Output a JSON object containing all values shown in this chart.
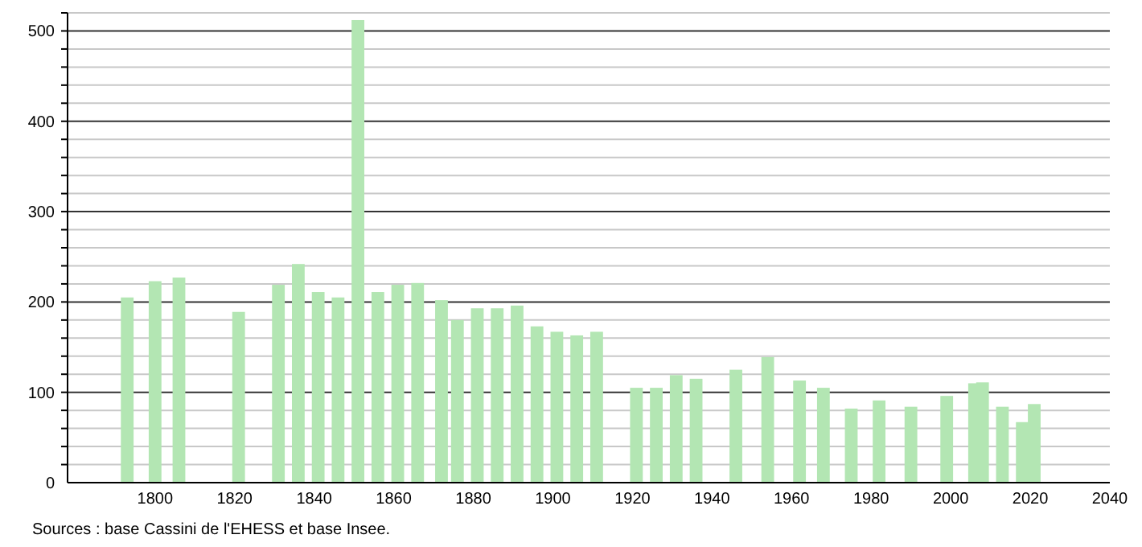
{
  "chart_data": {
    "type": "bar",
    "x": [
      1793,
      1800,
      1806,
      1821,
      1831,
      1836,
      1841,
      1846,
      1851,
      1856,
      1861,
      1866,
      1872,
      1876,
      1881,
      1886,
      1891,
      1896,
      1901,
      1906,
      1911,
      1921,
      1926,
      1931,
      1936,
      1946,
      1954,
      1962,
      1968,
      1975,
      1982,
      1990,
      1999,
      2006,
      2008,
      2013,
      2018,
      2021
    ],
    "values": [
      205,
      223,
      227,
      189,
      219,
      242,
      211,
      205,
      512,
      211,
      219,
      221,
      202,
      180,
      193,
      193,
      196,
      173,
      167,
      163,
      167,
      105,
      105,
      119,
      115,
      125,
      139,
      113,
      105,
      82,
      91,
      84,
      96,
      110,
      111,
      84,
      67,
      87
    ],
    "color": "#b3e6b3",
    "xlim": [
      1778,
      2040
    ],
    "xticks": [
      1800,
      1820,
      1840,
      1860,
      1880,
      1900,
      1920,
      1940,
      1960,
      1980,
      2000,
      2020,
      2040
    ],
    "ylim": [
      0,
      520
    ],
    "yticks": [
      0,
      {
        "value": 20,
        "label": null
      },
      {
        "value": 40,
        "label": null
      },
      {
        "value": 60,
        "label": null
      },
      {
        "value": 80,
        "label": null
      },
      100,
      {
        "value": 120,
        "label": null
      },
      {
        "value": 140,
        "label": null
      },
      {
        "value": 160,
        "label": null
      },
      {
        "value": 180,
        "label": null
      },
      200,
      {
        "value": 220,
        "label": null
      },
      {
        "value": 240,
        "label": null
      },
      {
        "value": 260,
        "label": null
      },
      {
        "value": 280,
        "label": null
      },
      300,
      {
        "value": 320,
        "label": null
      },
      {
        "value": 340,
        "label": null
      },
      {
        "value": 360,
        "label": null
      },
      {
        "value": 380,
        "label": null
      },
      400,
      {
        "value": 420,
        "label": null
      },
      {
        "value": 440,
        "label": null
      },
      {
        "value": 460,
        "label": null
      },
      {
        "value": 480,
        "label": null
      },
      500,
      {
        "value": 520,
        "label": null
      }
    ],
    "grid": "y",
    "annotations": [
      "Sources : base Cassini de l'EHESS et base Insee."
    ]
  }
}
